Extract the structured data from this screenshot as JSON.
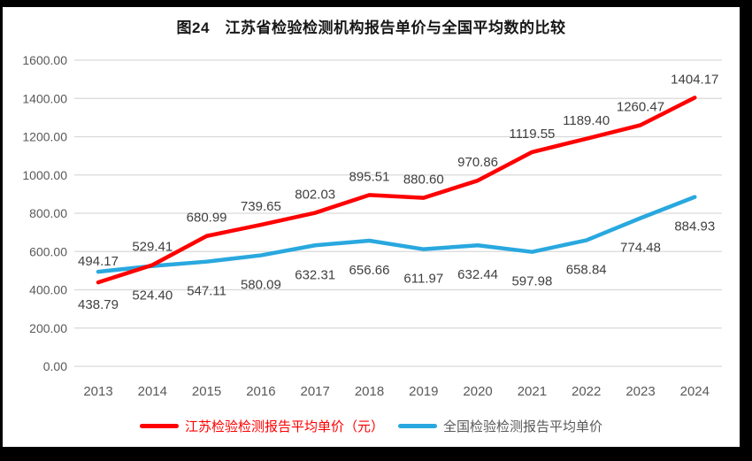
{
  "page": {
    "frame_color": "#000000",
    "panel_background": "#ffffff"
  },
  "chart_data": {
    "type": "line",
    "title": "图24　江苏省检验检测机构报告单价与全国平均数的比较",
    "categories": [
      "2013",
      "2014",
      "2015",
      "2016",
      "2017",
      "2018",
      "2019",
      "2020",
      "2021",
      "2022",
      "2023",
      "2024"
    ],
    "series": [
      {
        "name": "江苏检验检测报告平均单价（元）",
        "color": "#fe0000",
        "legend_text_color": "#fe0000",
        "values": [
          438.79,
          529.41,
          680.99,
          739.65,
          802.03,
          895.51,
          880.6,
          970.86,
          1119.55,
          1189.4,
          1260.47,
          1404.17
        ],
        "label_sides": [
          "below",
          "above",
          "above",
          "above",
          "above",
          "above",
          "above",
          "above",
          "above",
          "above",
          "above",
          "above"
        ],
        "label_offsets": {
          "above": -16,
          "below": 30
        }
      },
      {
        "name": "全国检验检测报告平均单价",
        "color": "#29a8df",
        "legend_text_color": "#595959",
        "values": [
          494.17,
          524.4,
          547.11,
          580.09,
          632.31,
          656.66,
          611.97,
          632.44,
          597.98,
          658.84,
          774.48,
          884.93
        ],
        "label_sides": [
          "above",
          "below",
          "below",
          "below",
          "below",
          "below",
          "below",
          "below",
          "below",
          "below",
          "below",
          "below"
        ],
        "label_offsets": {
          "above": -7,
          "below": 38
        }
      }
    ],
    "ylim": [
      0,
      1600
    ],
    "ytick_step": 200,
    "ytick_labels": [
      "0.00",
      "200.00",
      "400.00",
      "600.00",
      "800.00",
      "1000.00",
      "1200.00",
      "1400.00",
      "1600.00"
    ],
    "grid": true,
    "legend_position": "bottom",
    "axis_text_color": "#595959",
    "gridline_color": "#d9d9d9",
    "data_label_color": "#3f3f3f"
  }
}
